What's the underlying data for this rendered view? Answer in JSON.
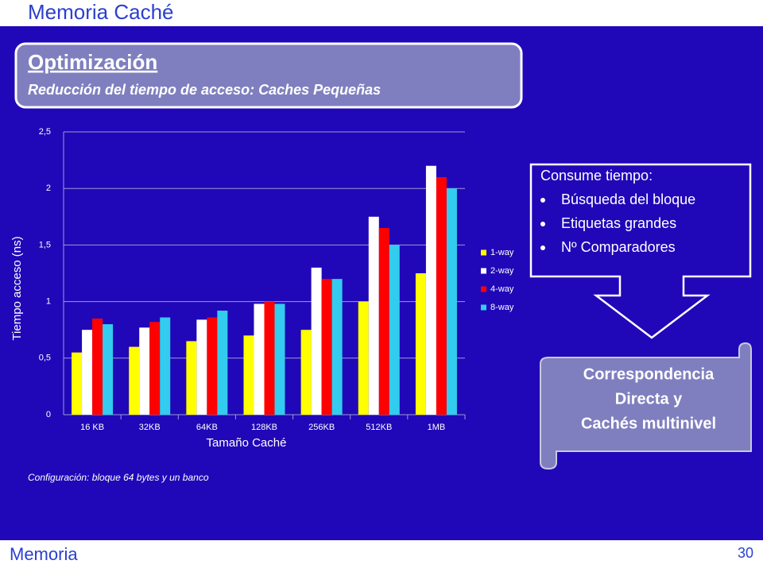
{
  "header": {
    "title": "Memoria Caché"
  },
  "banner": {
    "title": "Optimización",
    "subtitle": "Reducción del tiempo de acceso: Caches Pequeñas"
  },
  "callout": {
    "title": "Consume tiempo:",
    "items": [
      "Búsqueda del bloque",
      "Etiquetas grandes",
      "Nº Comparadores"
    ]
  },
  "scroll": {
    "lines": [
      "Correspondencia",
      "Directa y",
      "Cachés multinivel"
    ]
  },
  "note": "Configuración: bloque 64 bytes y un banco",
  "footer": {
    "section": "Memoria",
    "page": "30"
  },
  "chart_data": {
    "type": "bar",
    "categories": [
      "16 KB",
      "32KB",
      "64KB",
      "128KB",
      "256KB",
      "512KB",
      "1MB"
    ],
    "series": [
      {
        "name": "1-way",
        "color": "#ffff00",
        "values": [
          0.55,
          0.6,
          0.65,
          0.7,
          0.75,
          1.0,
          1.25
        ]
      },
      {
        "name": "2-way",
        "color": "#ffffff",
        "values": [
          0.75,
          0.77,
          0.84,
          0.98,
          1.3,
          1.75,
          2.2
        ]
      },
      {
        "name": "4-way",
        "color": "#ff0000",
        "values": [
          0.85,
          0.82,
          0.86,
          1.0,
          1.2,
          1.65,
          2.1
        ]
      },
      {
        "name": "8-way",
        "color": "#33ccee",
        "values": [
          0.8,
          0.86,
          0.92,
          0.98,
          1.2,
          1.5,
          2.0
        ]
      }
    ],
    "x_label": "Tamaño Caché",
    "y_label": "Tiempo acceso (ns)",
    "ylim": [
      0,
      2.5
    ],
    "yticks": [
      0,
      {
        "value": 0.5,
        "label": "0,5"
      },
      1,
      {
        "value": 1.5,
        "label": "1,5"
      },
      2,
      {
        "value": 2.5,
        "label": "2,5"
      }
    ],
    "grid": true,
    "legend": "right"
  }
}
